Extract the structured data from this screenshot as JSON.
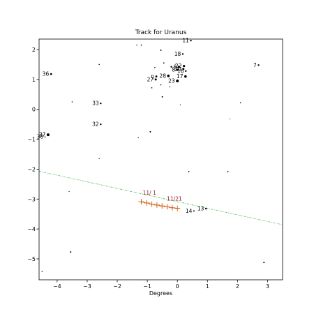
{
  "chart_data": {
    "type": "scatter",
    "title": "Track for Uranus",
    "xlabel": "Degrees",
    "ylabel": "",
    "xlim": [
      -4.6,
      3.5
    ],
    "ylim": [
      -5.7,
      2.35
    ],
    "xticks": [
      -4,
      -3,
      -2,
      -1,
      0,
      1,
      2,
      3
    ],
    "yticks": [
      -5,
      -4,
      -3,
      -2,
      -1,
      0,
      1,
      2
    ],
    "grid": false,
    "colors": {
      "track": "#d4621a",
      "ecliptic": "#3cb043",
      "stars": "#000000",
      "date_label": "#8b1a1a"
    },
    "ecliptic": {
      "x": [
        -4.6,
        3.5
      ],
      "y": [
        -2.07,
        -3.86
      ]
    },
    "track": {
      "x": [
        -1.2,
        -1.02,
        -0.85,
        -0.68,
        -0.51,
        -0.34,
        -0.17,
        0.0
      ],
      "y": [
        -3.09,
        -3.13,
        -3.17,
        -3.2,
        -3.23,
        -3.26,
        -3.29,
        -3.31
      ]
    },
    "date_labels": [
      {
        "text": "11/ 1",
        "x": -1.15,
        "y": -2.85
      },
      {
        "text": "11/21",
        "x": -0.35,
        "y": -3.05
      }
    ],
    "stars": [
      {
        "x": 0.45,
        "y": 2.3,
        "r": 1.2,
        "label": "11"
      },
      {
        "x": 0.18,
        "y": 1.85,
        "r": 1.2,
        "label": "18"
      },
      {
        "x": 0.22,
        "y": 1.45,
        "r": 1.6,
        "label": "22"
      },
      {
        "x": 0.05,
        "y": 1.42,
        "r": 1.6,
        "label": "6"
      },
      {
        "x": 0.2,
        "y": 1.35,
        "r": 1.5,
        "label": "20"
      },
      {
        "x": 0.0,
        "y": 1.32,
        "r": 1.5,
        "label": "8"
      },
      {
        "x": 0.28,
        "y": 1.28,
        "r": 1.2,
        "label": "16"
      },
      {
        "x": 0.27,
        "y": 1.1,
        "r": 1.8,
        "label": "17"
      },
      {
        "x": -0.3,
        "y": 1.12,
        "r": 1.8,
        "label": "28"
      },
      {
        "x": -0.7,
        "y": 1.1,
        "r": 1.4,
        "label": "η"
      },
      {
        "x": -0.72,
        "y": 1.0,
        "r": 1.5,
        "label": "27"
      },
      {
        "x": 0.0,
        "y": 0.95,
        "r": 2.0,
        "label": "23"
      },
      {
        "x": 2.7,
        "y": 1.48,
        "r": 1.2,
        "label": "7"
      },
      {
        "x": -4.2,
        "y": 1.18,
        "r": 1.4,
        "label": "36"
      },
      {
        "x": -2.55,
        "y": 0.2,
        "r": 1.2,
        "label": "33"
      },
      {
        "x": -2.55,
        "y": -0.5,
        "r": 1.2,
        "label": "32"
      },
      {
        "x": -4.3,
        "y": -0.85,
        "r": 2.0,
        "label": "37"
      },
      {
        "x": -4.4,
        "y": -0.92,
        "r": 0.8,
        "label": "38"
      },
      {
        "x": 0.95,
        "y": -3.32,
        "r": 1.2,
        "label": "13"
      },
      {
        "x": 0.55,
        "y": -3.4,
        "r": 1.0,
        "label": "14"
      },
      {
        "x": -0.55,
        "y": 1.98,
        "r": 1.0,
        "label": ""
      },
      {
        "x": -1.2,
        "y": 2.15,
        "r": 0.8,
        "label": ""
      },
      {
        "x": -1.35,
        "y": 2.15,
        "r": 0.7,
        "label": ""
      },
      {
        "x": -2.6,
        "y": 1.5,
        "r": 0.8,
        "label": ""
      },
      {
        "x": -0.75,
        "y": 1.4,
        "r": 0.8,
        "label": ""
      },
      {
        "x": -0.45,
        "y": 1.55,
        "r": 0.9,
        "label": ""
      },
      {
        "x": -0.2,
        "y": 1.42,
        "r": 1.2,
        "label": ""
      },
      {
        "x": -0.55,
        "y": 0.82,
        "r": 0.8,
        "label": ""
      },
      {
        "x": -0.85,
        "y": 0.72,
        "r": 0.8,
        "label": ""
      },
      {
        "x": -0.25,
        "y": 0.75,
        "r": 0.7,
        "label": ""
      },
      {
        "x": -0.5,
        "y": 0.42,
        "r": 1.0,
        "label": ""
      },
      {
        "x": 0.1,
        "y": 0.15,
        "r": 0.6,
        "label": ""
      },
      {
        "x": -3.5,
        "y": 0.25,
        "r": 0.7,
        "label": ""
      },
      {
        "x": 2.1,
        "y": 0.22,
        "r": 0.8,
        "label": ""
      },
      {
        "x": 1.75,
        "y": -0.32,
        "r": 0.6,
        "label": ""
      },
      {
        "x": -0.9,
        "y": -0.75,
        "r": 1.0,
        "label": ""
      },
      {
        "x": -1.3,
        "y": -0.95,
        "r": 0.7,
        "label": ""
      },
      {
        "x": -2.6,
        "y": -1.65,
        "r": 0.7,
        "label": ""
      },
      {
        "x": 0.38,
        "y": -2.08,
        "r": 0.9,
        "label": ""
      },
      {
        "x": 1.68,
        "y": -2.08,
        "r": 0.9,
        "label": ""
      },
      {
        "x": -3.6,
        "y": -2.75,
        "r": 0.6,
        "label": ""
      },
      {
        "x": -3.55,
        "y": -4.77,
        "r": 1.0,
        "label": ""
      },
      {
        "x": 2.88,
        "y": -5.12,
        "r": 1.0,
        "label": ""
      },
      {
        "x": -4.5,
        "y": -5.42,
        "r": 0.8,
        "label": ""
      }
    ]
  }
}
